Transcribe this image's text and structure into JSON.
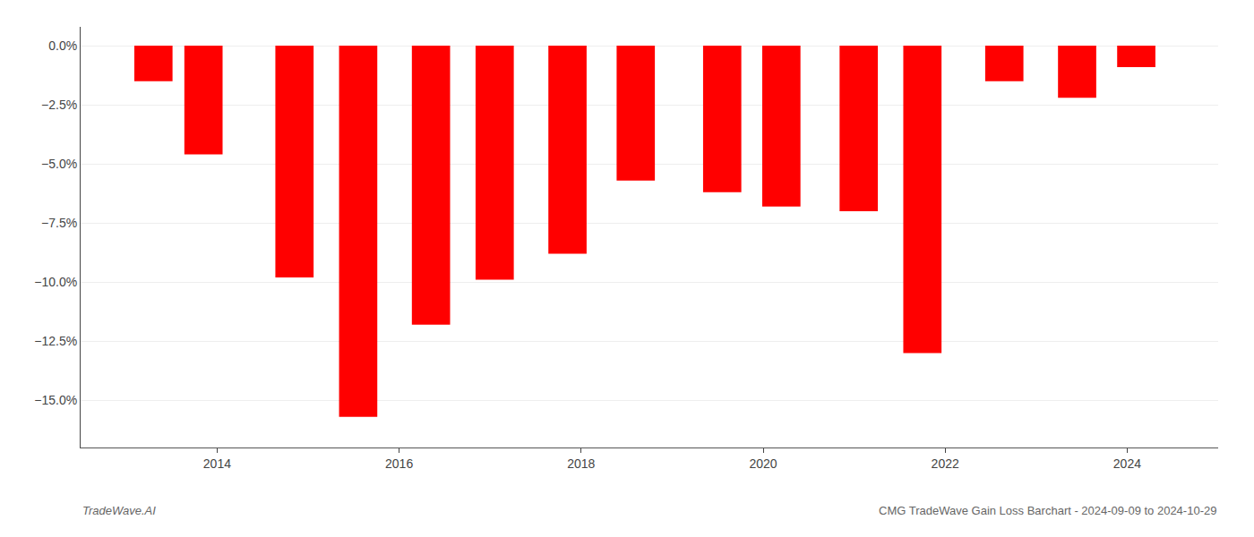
{
  "chart_data": {
    "type": "bar",
    "x": [
      2013.3,
      2013.85,
      2014.85,
      2015.55,
      2016.35,
      2017.05,
      2017.85,
      2018.6,
      2019.55,
      2020.2,
      2021.05,
      2021.75,
      2022.65,
      2023.45,
      2024.1
    ],
    "values": [
      -1.5,
      -4.6,
      -9.8,
      -15.7,
      -11.8,
      -9.9,
      -8.8,
      -5.7,
      -6.2,
      -6.8,
      -7.0,
      -13.0,
      -1.5,
      -2.2,
      -0.9
    ],
    "color": "#ff0000",
    "xlim": [
      2012.5,
      2025.0
    ],
    "xticks": [
      2014,
      2016,
      2018,
      2020,
      2022,
      2024
    ],
    "ylim": [
      -17.0,
      0.8
    ],
    "yticks": [
      {
        "value": 0.0,
        "label": "0.0%"
      },
      {
        "value": -2.5,
        "label": "−2.5%"
      },
      {
        "value": -5.0,
        "label": "−5.0%"
      },
      {
        "value": -7.5,
        "label": "−7.5%"
      },
      {
        "value": -10.0,
        "label": "−10.0%"
      },
      {
        "value": -12.5,
        "label": "−12.5%"
      },
      {
        "value": -15.0,
        "label": "−15.0%"
      }
    ],
    "grid": true,
    "annotations": [
      "TradeWave.AI",
      "CMG TradeWave Gain Loss Barchart - 2024-09-09 to 2024-10-29"
    ]
  }
}
